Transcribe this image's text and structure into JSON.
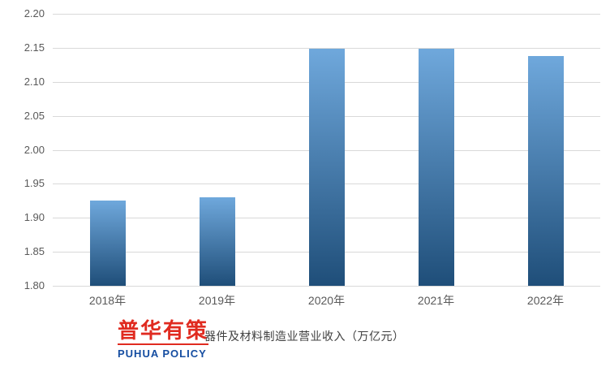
{
  "chart_data": {
    "type": "bar",
    "categories": [
      "2018年",
      "2019年",
      "2020年",
      "2021年",
      "2022年"
    ],
    "values": [
      1.925,
      1.93,
      2.149,
      2.149,
      2.138
    ],
    "caption": "器件及材料制造业营业收入（万亿元）",
    "title": "",
    "xlabel": "",
    "ylabel": "",
    "ylim": [
      1.8,
      2.2
    ],
    "ytick_step": 0.05,
    "yticks": [
      "2.20",
      "2.15",
      "2.10",
      "2.05",
      "2.00",
      "1.95",
      "1.90",
      "1.85",
      "1.80"
    ],
    "grid": true,
    "legend_position": "bottom",
    "bar_gradient_top": "#6fa8dc",
    "bar_gradient_bottom": "#1f4e79",
    "gridline_color": "#d9d9d9",
    "tick_color": "#595959"
  },
  "logo": {
    "cn": "普华有策",
    "en": "PUHUA POLICY",
    "red": "#e02b20",
    "blue": "#154da1"
  }
}
